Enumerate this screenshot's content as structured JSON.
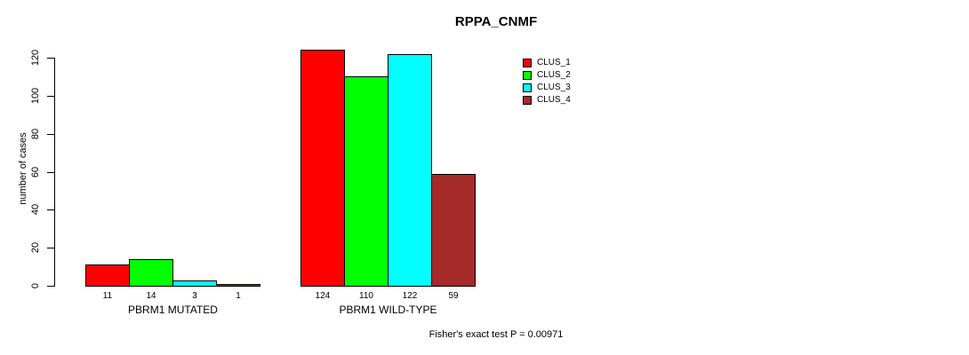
{
  "chart_data": {
    "type": "bar",
    "title": "RPPA_CNMF",
    "ylabel": "number of cases",
    "xlabel": "",
    "categories": [
      "PBRM1 MUTATED",
      "PBRM1 WILD-TYPE"
    ],
    "series": [
      {
        "name": "CLUS_1",
        "color": "#ff0000",
        "values": [
          11,
          124
        ]
      },
      {
        "name": "CLUS_2",
        "color": "#00ff00",
        "values": [
          14,
          110
        ]
      },
      {
        "name": "CLUS_3",
        "color": "#00ffff",
        "values": [
          3,
          122
        ]
      },
      {
        "name": "CLUS_4",
        "color": "#a52a2a",
        "values": [
          1,
          59
        ]
      }
    ],
    "bar_value_labels": [
      [
        "11",
        "14",
        "3",
        "1"
      ],
      [
        "124",
        "110",
        "122",
        "59"
      ]
    ],
    "yticks": [
      0,
      20,
      40,
      60,
      80,
      100,
      120
    ],
    "ylim": [
      0,
      120
    ],
    "grid": false,
    "legend_position": "top-right",
    "annotation": "Fisher's exact test P = 0.00971",
    "axis_color": "#000000",
    "background_color": "#ffffff"
  }
}
